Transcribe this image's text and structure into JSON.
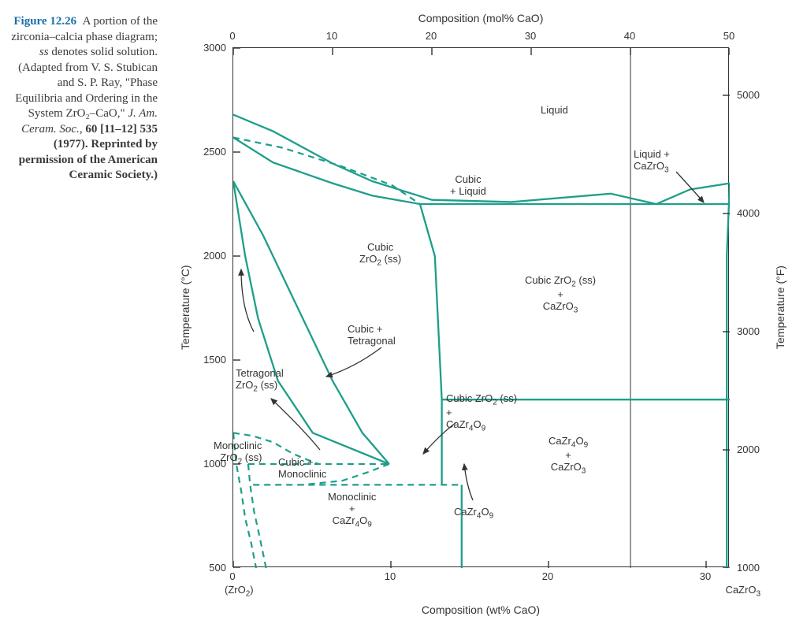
{
  "figure": {
    "number": "Figure 12.26",
    "caption_body": "A portion of the zirconia–calcia phase diagram; ",
    "ss_note": "ss",
    "ss_after": " denotes solid solution. (Adapted from V. S. Stubican and S. P. Ray, \"Phase Equilibria and Ordering in the System ZrO₂–CaO,\" ",
    "journal": "J. Am. Ceram. Soc.,",
    "cite_tail": " 60 [11–12] 535 (1977). Reprinted by permission of the American Ceramic Society.)"
  },
  "chart": {
    "type": "phase-diagram",
    "line_color": "#1e9e8a",
    "border_color": "#333333",
    "background_color": "#ffffff",
    "axis_top": {
      "label": "Composition (mol% CaO)",
      "min": 0,
      "max": 50,
      "ticks": [
        0,
        10,
        20,
        30,
        40,
        50
      ]
    },
    "axis_bottom": {
      "label": "Composition (wt% CaO)",
      "min": 0,
      "max": 31.5,
      "ticks": [
        0,
        10,
        20,
        30
      ],
      "left_cap": "(ZrO₂)",
      "right_cap": "CaZrO₃"
    },
    "axis_left": {
      "label": "Temperature (°C)",
      "min": 500,
      "max": 3000,
      "ticks": [
        500,
        1000,
        1500,
        2000,
        2500,
        3000
      ]
    },
    "axis_right": {
      "label": "Temperature (°F)",
      "min": 1000,
      "max": 5400,
      "ticks": [
        1000,
        2000,
        3000,
        4000,
        5000
      ]
    },
    "regions": {
      "liquid": "Liquid",
      "liquid_cazro3": "Liquid +\nCaZrO₃",
      "cubic_liquid": "Cubic\n+ Liquid",
      "cubic_ss": "Cubic\nZrO₂ (ss)",
      "cubic_ss_cazro3": "Cubic ZrO₂ (ss)\n+\nCaZrO₃",
      "cubic_tetragonal": "Cubic +\nTetragonal",
      "tetragonal_ss": "Tetragonal\nZrO₂ (ss)",
      "cubic_ss_cazr4o9": "Cubic ZrO₂ (ss)\n+\nCaZr₄O₉",
      "cazr4o9": "CaZr₄O₉",
      "cazr4o9_cazro3": "CaZr₄O₉\n+\nCaZrO₃",
      "monoclinic_cazr4o9": "Monoclinic\n+\nCaZr₄O₉",
      "cubic_monoclinic": "Cubic +\nMonoclinic",
      "monoclinic_ss": "Monoclinic\nZrO₂ (ss)"
    },
    "curves": {
      "liquidus_left": {
        "style": "solid",
        "pts": [
          [
            0,
            2680
          ],
          [
            4,
            2600
          ],
          [
            10,
            2445
          ],
          [
            14,
            2360
          ],
          [
            20,
            2270
          ],
          [
            28,
            2260
          ],
          [
            38,
            2300
          ],
          [
            42.6,
            2250
          ]
        ]
      },
      "liquidus_right": {
        "style": "solid",
        "pts": [
          [
            42.6,
            2250
          ],
          [
            46,
            2320
          ],
          [
            50,
            2350
          ]
        ]
      },
      "solidus_cubic": {
        "style": "solid",
        "pts": [
          [
            0,
            2570
          ],
          [
            4,
            2450
          ],
          [
            10,
            2350
          ],
          [
            14,
            2290
          ],
          [
            18.8,
            2250
          ]
        ]
      },
      "eutectic_2250": {
        "style": "solid",
        "pts": [
          [
            18.8,
            2250
          ],
          [
            50,
            2250
          ]
        ]
      },
      "eutectoid_1310": {
        "style": "solid",
        "pts": [
          [
            21,
            1310
          ],
          [
            50,
            1310
          ]
        ]
      },
      "cubic_right_boundary": {
        "style": "solid",
        "pts": [
          [
            18.8,
            2250
          ],
          [
            20.3,
            2000
          ],
          [
            21,
            1310
          ],
          [
            21,
            1000
          ],
          [
            21,
            900
          ]
        ]
      },
      "cubic_left_boundary": {
        "style": "solid",
        "pts": [
          [
            0,
            2360
          ],
          [
            3,
            2100
          ],
          [
            7,
            1700
          ],
          [
            10,
            1400
          ],
          [
            13,
            1150
          ],
          [
            15.7,
            1000
          ]
        ]
      },
      "tet_cubic_interior": {
        "style": "solid",
        "pts": [
          [
            0,
            2360
          ],
          [
            1.2,
            2000
          ],
          [
            2.5,
            1700
          ],
          [
            4.5,
            1400
          ],
          [
            8,
            1150
          ],
          [
            15.7,
            1000
          ]
        ]
      },
      "mono_tet_dash": {
        "style": "dashed",
        "pts": [
          [
            0,
            1150
          ],
          [
            2,
            1135
          ],
          [
            4,
            1105
          ],
          [
            6,
            1050
          ],
          [
            8,
            1010
          ],
          [
            8.6,
            1000
          ]
        ]
      },
      "cazr4o9_vert": {
        "style": "solid",
        "pts": [
          [
            23,
            500
          ],
          [
            23,
            900
          ]
        ]
      },
      "peritectoid_1000": {
        "style": "dashed",
        "pts": [
          [
            1.5,
            1000
          ],
          [
            15.7,
            1000
          ]
        ]
      },
      "eutectoid_900": {
        "style": "dashed",
        "pts": [
          [
            2,
            900
          ],
          [
            23,
            900
          ]
        ]
      },
      "dash_2570_2250": {
        "style": "dashed",
        "pts": [
          [
            0,
            2570
          ],
          [
            5,
            2520
          ],
          [
            11,
            2430
          ],
          [
            16,
            2340
          ],
          [
            18.8,
            2250
          ]
        ]
      },
      "dash_cubic_left_ext": {
        "style": "dashed",
        "pts": [
          [
            15.7,
            1000
          ],
          [
            13.5,
            960
          ],
          [
            11,
            920
          ],
          [
            7,
            900
          ]
        ]
      },
      "dash_mono_left": {
        "style": "dashed",
        "pts": [
          [
            0,
            1150
          ],
          [
            0.3,
            1000
          ],
          [
            0.8,
            870
          ],
          [
            1.2,
            740
          ],
          [
            1.8,
            620
          ],
          [
            2.3,
            500
          ]
        ]
      },
      "dash_mono_left2": {
        "style": "dashed",
        "pts": [
          [
            1.5,
            1000
          ],
          [
            1.7,
            900
          ],
          [
            2.1,
            770
          ],
          [
            2.7,
            640
          ],
          [
            3.3,
            500
          ]
        ]
      },
      "cazro3_right": {
        "style": "solid",
        "pts": [
          [
            50,
            2350
          ],
          [
            49.7,
            2000
          ],
          [
            49.7,
            1310
          ],
          [
            49.7,
            500
          ]
        ]
      }
    }
  }
}
